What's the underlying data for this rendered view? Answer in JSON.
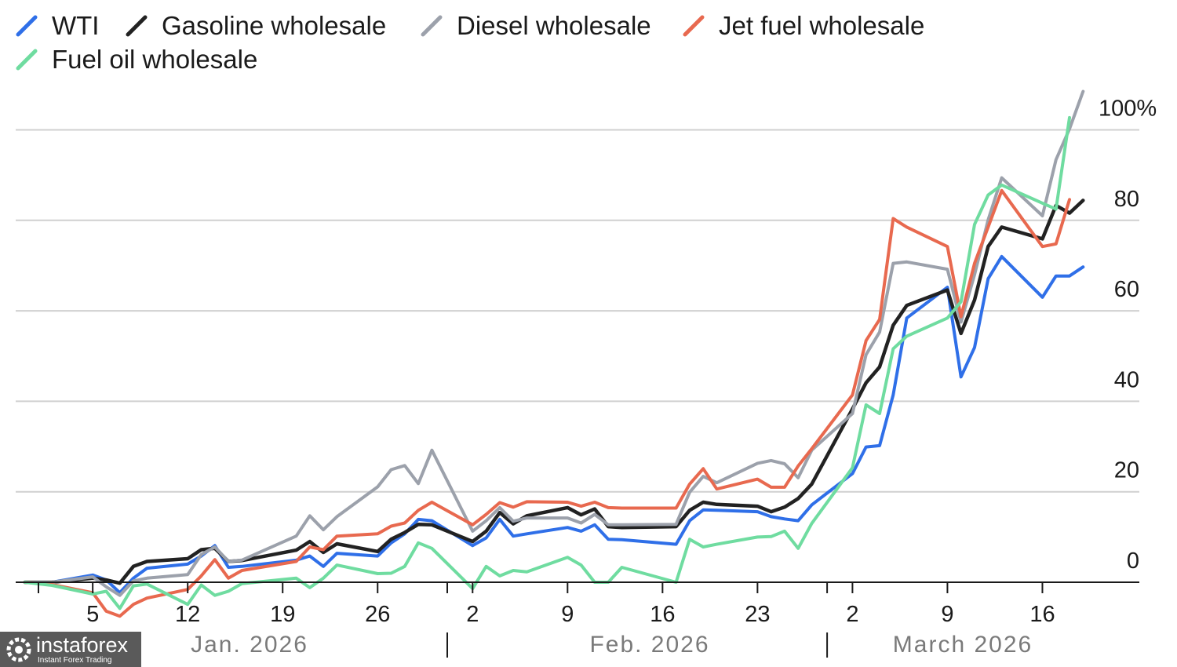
{
  "chart_data": {
    "type": "line",
    "title": "",
    "xlabel": "",
    "ylabel": "",
    "y_unit": "%",
    "ylim": [
      -10,
      100
    ],
    "y_ticks": [
      0,
      20,
      40,
      60,
      80,
      100
    ],
    "y_tick_labels": [
      "0",
      "20",
      "40",
      "60",
      "80",
      "100%"
    ],
    "grid": "horizontal",
    "legend_placement": "top-left",
    "x_ticks": [
      {
        "date": "2026-01-05",
        "label": "5"
      },
      {
        "date": "2026-01-12",
        "label": "12"
      },
      {
        "date": "2026-01-19",
        "label": "19"
      },
      {
        "date": "2026-01-26",
        "label": "26"
      },
      {
        "date": "2026-02-02",
        "label": "2"
      },
      {
        "date": "2026-02-09",
        "label": "9"
      },
      {
        "date": "2026-02-16",
        "label": "16"
      },
      {
        "date": "2026-02-23",
        "label": "23"
      },
      {
        "date": "2026-03-02",
        "label": "2"
      },
      {
        "date": "2026-03-09",
        "label": "9"
      },
      {
        "date": "2026-03-16",
        "label": "16"
      }
    ],
    "months": [
      "Jan. 2026",
      "Feb. 2026",
      "March 2026"
    ],
    "x": [
      "2025-12-31",
      "2026-01-02",
      "2026-01-05",
      "2026-01-06",
      "2026-01-07",
      "2026-01-08",
      "2026-01-09",
      "2026-01-12",
      "2026-01-13",
      "2026-01-14",
      "2026-01-15",
      "2026-01-16",
      "2026-01-20",
      "2026-01-21",
      "2026-01-22",
      "2026-01-23",
      "2026-01-26",
      "2026-01-27",
      "2026-01-28",
      "2026-01-29",
      "2026-01-30",
      "2026-02-02",
      "2026-02-03",
      "2026-02-04",
      "2026-02-05",
      "2026-02-06",
      "2026-02-09",
      "2026-02-10",
      "2026-02-11",
      "2026-02-12",
      "2026-02-13",
      "2026-02-17",
      "2026-02-18",
      "2026-02-19",
      "2026-02-20",
      "2026-02-23",
      "2026-02-24",
      "2026-02-25",
      "2026-02-26",
      "2026-02-27",
      "2026-03-02",
      "2026-03-03",
      "2026-03-04",
      "2026-03-05",
      "2026-03-06",
      "2026-03-09",
      "2026-03-10",
      "2026-03-11",
      "2026-03-12",
      "2026-03-13",
      "2026-03-16",
      "2026-03-17",
      "2026-03-18",
      "2026-03-19"
    ],
    "series": [
      {
        "name": "WTI",
        "color": "#2f6fe8",
        "values": [
          0,
          0,
          1.6,
          0.5,
          -2.3,
          0.9,
          3.1,
          4.0,
          5.8,
          8.1,
          3.3,
          3.5,
          4.9,
          5.8,
          3.5,
          6.4,
          5.8,
          8.7,
          10.7,
          13.9,
          13.6,
          8.1,
          9.8,
          13.9,
          10.2,
          10.7,
          12.1,
          11.3,
          12.7,
          9.5,
          9.4,
          8.4,
          13.6,
          16.0,
          15.9,
          15.6,
          14.5,
          14.0,
          13.6,
          17.1,
          24.0,
          29.9,
          30.2,
          41.4,
          58.4,
          65.2,
          45.4,
          51.9,
          67.1,
          72.0,
          63.0,
          67.7,
          67.7,
          69.7
        ]
      },
      {
        "name": "Gasoline wholesale",
        "color": "#222222",
        "values": [
          0,
          0,
          0.9,
          0.5,
          -0.2,
          3.5,
          4.6,
          5.2,
          7.2,
          7.5,
          4.6,
          4.8,
          7.1,
          9.0,
          6.6,
          8.5,
          6.8,
          9.5,
          11.0,
          12.8,
          12.7,
          9.0,
          11.3,
          15.4,
          12.9,
          14.7,
          16.5,
          14.9,
          16.2,
          12.3,
          12.1,
          12.3,
          15.9,
          17.7,
          17.2,
          16.8,
          15.6,
          16.6,
          18.5,
          21.7,
          38.3,
          44.1,
          47.6,
          56.8,
          61.2,
          64.6,
          55.0,
          62.4,
          74.2,
          78.5,
          75.9,
          83.3,
          81.6,
          84.4
        ]
      },
      {
        "name": "Diesel wholesale",
        "color": "#9ca1ab",
        "values": [
          0,
          0,
          1.2,
          -1,
          -2.9,
          0.3,
          0.9,
          1.7,
          6.1,
          7.8,
          4.6,
          4.9,
          10.2,
          14.7,
          11.6,
          14.5,
          21.1,
          24.9,
          25.8,
          21.8,
          29.2,
          11.3,
          13.6,
          16.5,
          13.5,
          14.2,
          14.2,
          13.1,
          15.0,
          12.7,
          12.7,
          12.8,
          19.9,
          23.4,
          22.0,
          26.3,
          26.9,
          26.2,
          23.1,
          29.2,
          37.3,
          50.3,
          55.3,
          70.5,
          70.8,
          69.2,
          57.5,
          68.0,
          80.1,
          89.4,
          81.0,
          93.4,
          100.2,
          108.5
        ]
      },
      {
        "name": "Jet fuel wholesale",
        "color": "#e8694f",
        "values": [
          0,
          -0.5,
          -2.3,
          -6.4,
          -7.5,
          -4.9,
          -3.5,
          -1.6,
          1.4,
          5.0,
          0.9,
          2.6,
          4.6,
          7.8,
          7.2,
          10.2,
          10.7,
          12.4,
          13.1,
          15.9,
          17.7,
          12.7,
          15.0,
          17.6,
          16.6,
          17.8,
          17.7,
          16.8,
          17.7,
          16.5,
          16.4,
          16.4,
          21.7,
          25.1,
          20.6,
          22.8,
          21.0,
          21.0,
          25.7,
          29.5,
          41.4,
          53.4,
          58.1,
          80.4,
          78.5,
          74.2,
          58.7,
          70.5,
          78.5,
          86.6,
          74.2,
          74.8,
          84.6,
          null
        ]
      },
      {
        "name": "Fuel oil wholesale",
        "color": "#6fdca0",
        "values": [
          0,
          -0.7,
          -2.6,
          -2,
          -5.8,
          -0.8,
          -0.4,
          -4.9,
          -0.6,
          -2.9,
          -2.0,
          -0.3,
          0.9,
          -1.2,
          0.9,
          3.8,
          1.9,
          2.0,
          3.5,
          8.7,
          7.5,
          -1.4,
          3.5,
          1.4,
          2.6,
          2.3,
          5.5,
          3.8,
          0,
          0,
          3.3,
          0,
          9.5,
          7.8,
          8.4,
          10.0,
          10.1,
          11.3,
          7.5,
          13.0,
          25.3,
          39.2,
          37.3,
          51.6,
          54.4,
          58.4,
          62.0,
          79.1,
          85.6,
          87.8,
          83.8,
          82.5,
          102.7,
          null
        ]
      }
    ]
  },
  "watermark": {
    "brand": "instaforex",
    "tagline": "Instant Forex Trading"
  }
}
